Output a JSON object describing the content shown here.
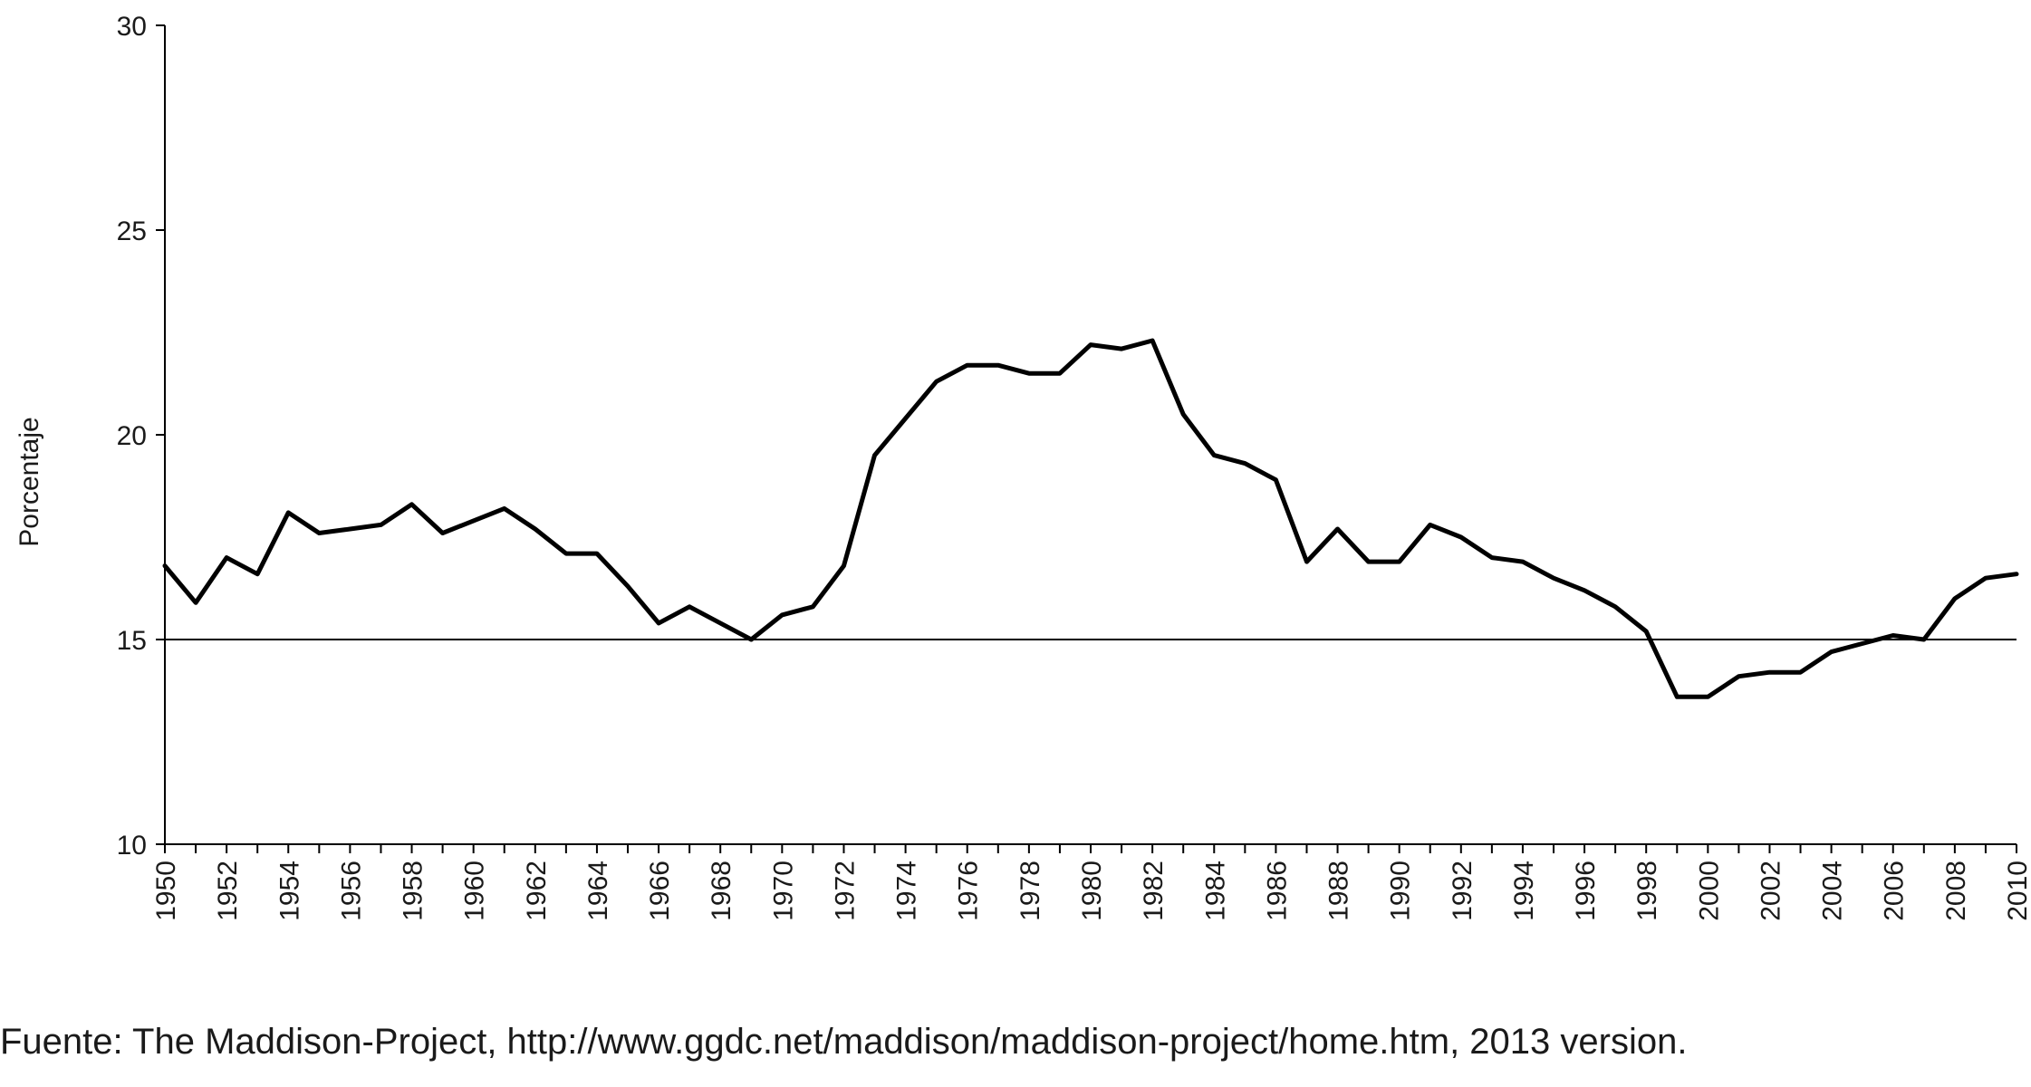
{
  "chart_data": {
    "type": "line",
    "title": "",
    "xlabel": "",
    "ylabel": "Porcentaje",
    "ylim": [
      10,
      30
    ],
    "xlim": [
      1950,
      2010
    ],
    "yticks": [
      10,
      15,
      20,
      25,
      30
    ],
    "xticks": [
      "1950",
      "1952",
      "1954",
      "1956",
      "1958",
      "1960",
      "1962",
      "1964",
      "1966",
      "1968",
      "1970",
      "1972",
      "1974",
      "1976",
      "1978",
      "1980",
      "1982",
      "1984",
      "1986",
      "1988",
      "1990",
      "1992",
      "1994",
      "1996",
      "1998",
      "2000",
      "2002",
      "2004",
      "2006",
      "2008",
      "2010"
    ],
    "grid": false,
    "legend": "none",
    "reference_line": {
      "y": 15
    },
    "series": [
      {
        "x": [
          1950,
          1951,
          1952,
          1953,
          1954,
          1955,
          1956,
          1957,
          1958,
          1959,
          1960,
          1961,
          1962,
          1963,
          1964,
          1965,
          1966,
          1967,
          1968,
          1969,
          1970,
          1971,
          1972,
          1973,
          1974,
          1975,
          1976,
          1977,
          1978,
          1979,
          1980,
          1981,
          1982,
          1983,
          1984,
          1985,
          1986,
          1987,
          1988,
          1989,
          1990,
          1991,
          1992,
          1993,
          1994,
          1995,
          1996,
          1997,
          1998,
          1999,
          2000,
          2001,
          2002,
          2003,
          2004,
          2005,
          2006,
          2007,
          2008,
          2009,
          2010
        ],
        "values": [
          16.8,
          15.9,
          17.0,
          16.6,
          18.1,
          17.6,
          17.7,
          17.8,
          18.3,
          17.6,
          17.9,
          18.2,
          17.7,
          17.1,
          17.1,
          16.3,
          15.4,
          15.8,
          15.4,
          15.0,
          15.6,
          15.8,
          16.8,
          19.5,
          20.4,
          21.3,
          21.7,
          21.7,
          21.5,
          21.5,
          22.2,
          22.1,
          22.3,
          20.5,
          19.5,
          19.3,
          18.9,
          16.9,
          17.7,
          16.9,
          16.9,
          17.8,
          17.5,
          17.0,
          16.9,
          16.5,
          16.2,
          15.8,
          15.2,
          13.6,
          13.6,
          14.1,
          14.2,
          14.2,
          14.7,
          14.9,
          15.1,
          15.0,
          16.0,
          16.5,
          16.6
        ],
        "color": "#000000"
      }
    ]
  },
  "source": "Fuente: The Maddison-Project, http://www.ggdc.net/maddison/maddison-project/home.htm, 2013 version."
}
